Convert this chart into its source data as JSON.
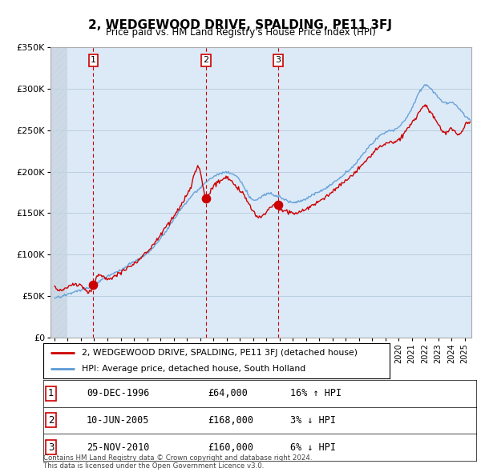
{
  "title": "2, WEDGEWOOD DRIVE, SPALDING, PE11 3FJ",
  "subtitle": "Price paid vs. HM Land Registry's House Price Index (HPI)",
  "legend_label_red": "2, WEDGEWOOD DRIVE, SPALDING, PE11 3FJ (detached house)",
  "legend_label_blue": "HPI: Average price, detached house, South Holland",
  "footer": "Contains HM Land Registry data © Crown copyright and database right 2024.\nThis data is licensed under the Open Government Licence v3.0.",
  "sales": [
    {
      "num": 1,
      "date": "09-DEC-1996",
      "price": 64000,
      "hpi_pct": "16%",
      "direction": "↑"
    },
    {
      "num": 2,
      "date": "10-JUN-2005",
      "price": 168000,
      "hpi_pct": "3%",
      "direction": "↓"
    },
    {
      "num": 3,
      "date": "25-NOV-2010",
      "price": 160000,
      "hpi_pct": "6%",
      "direction": "↓"
    }
  ],
  "sale_years": [
    1996.94,
    2005.44,
    2010.9
  ],
  "sale_prices": [
    64000,
    168000,
    160000
  ],
  "ylim": [
    0,
    350000
  ],
  "yticks": [
    0,
    50000,
    100000,
    150000,
    200000,
    250000,
    300000,
    350000
  ],
  "xlim_left": 1993.7,
  "xlim_right": 2025.5,
  "chart_bg": "#dce9f7",
  "hpi_color": "#5b9bd5",
  "price_color": "#cc0000",
  "marker_color": "#cc0000",
  "dashed_color": "#cc0000",
  "grid_color": "#b8cfe0",
  "hatch_color": "#b0b8c8"
}
